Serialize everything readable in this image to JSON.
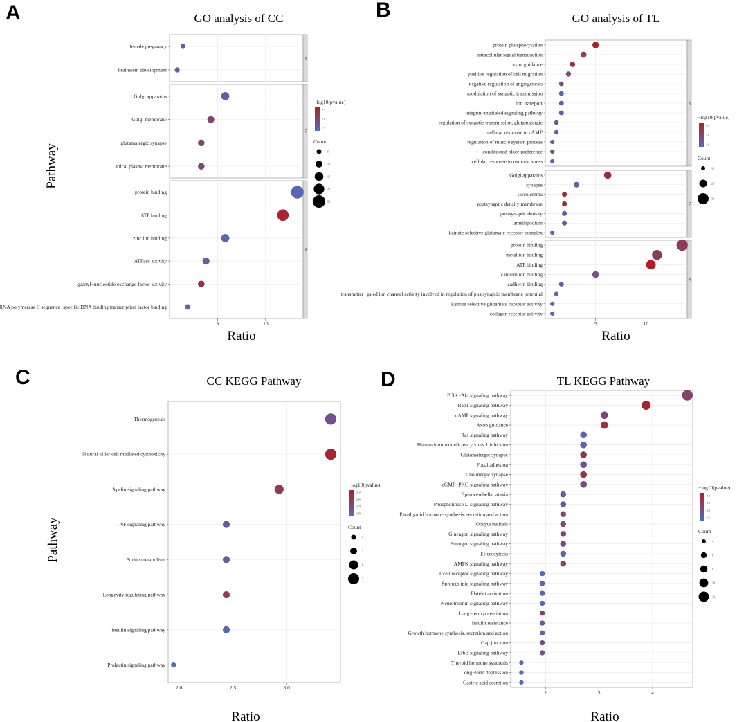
{
  "figure": {
    "panel_letters": [
      "A",
      "B",
      "C",
      "D"
    ],
    "common_labels": {
      "xlabel": "Ratio",
      "ylabel": "Pathway",
      "color_legend_title": "−log10(pvalue)",
      "size_legend_title": "Count"
    },
    "colors": {
      "low": "#4f6dc4",
      "high": "#b31d22",
      "grid": "#e6e6e6",
      "strip": "#d9d9d9"
    }
  },
  "chart_data": [
    {
      "id": "A",
      "type": "scatter",
      "title": "GO analysis of CC",
      "xlabel": "Ratio",
      "ylabel": "Pathway",
      "xlim": [
        0,
        13.9
      ],
      "xticks": [
        5,
        10
      ],
      "facets": [
        {
          "strip": "BP",
          "categories": [
            "female pregnancy",
            "brainstem development"
          ],
          "x": [
            1.4,
            0.8
          ],
          "count": [
            1,
            1
          ],
          "pvalue": [
            1.9,
            1.9
          ]
        },
        {
          "strip": "CC",
          "categories": [
            "Golgi apparatus",
            "Golgi membrane",
            "glutamatergic synapse",
            "apical plasma membrane"
          ],
          "x": [
            5.8,
            4.3,
            3.3,
            3.3
          ],
          "count": [
            7,
            5,
            4,
            4
          ],
          "pvalue": [
            1.8,
            2.3,
            2.3,
            2.2
          ]
        },
        {
          "strip": "MF",
          "categories": [
            "protein binding",
            "ATP binding",
            "zinc ion binding",
            "ATPase activity",
            "guanyl−nucleotide exchange factor activity",
            "RNA polymerase II sequence−specific DNA binding transcription factor binding"
          ],
          "x": [
            13.3,
            11.8,
            5.8,
            3.8,
            3.3,
            1.9
          ],
          "count": [
            16,
            14,
            7,
            5,
            4,
            2
          ],
          "pvalue": [
            1.7,
            2.8,
            1.7,
            1.8,
            2.6,
            1.7
          ]
        }
      ],
      "color_legend": {
        "title": "−log10(pvalue)",
        "range": [
          1.6,
          2.9
        ],
        "ticks": [
          "2.5",
          "2.0",
          "1.5"
        ]
      },
      "size_legend": {
        "title": "Count",
        "values": [
          "5",
          "10",
          "15",
          "20",
          "25"
        ]
      }
    },
    {
      "id": "B",
      "type": "scatter",
      "title": "GO analysis of TL",
      "xlabel": "Ratio",
      "ylabel": "",
      "xlim": [
        0,
        14.1
      ],
      "xticks": [
        5,
        10
      ],
      "facets": [
        {
          "strip": "BP",
          "categories": [
            "protein phosphorylation",
            "intracellular signal transduction",
            "axon guidance",
            "positive regulation of cell migration",
            "negative regulation of angiogenesis",
            "modulation of synaptic transmission",
            "ion transport",
            "integrin−mediated signaling pathway",
            "regulation of synaptic transmission, glutamatergic",
            "cellular response to cAMP",
            "regulation of muscle system process",
            "conditioned place preference",
            "cellular response to osmotic stress"
          ],
          "x": [
            5.0,
            3.8,
            2.7,
            2.3,
            1.6,
            1.6,
            1.6,
            1.6,
            1.1,
            1.1,
            0.7,
            0.7,
            0.7
          ],
          "count": [
            13,
            10,
            7,
            6,
            4,
            4,
            4,
            4,
            3,
            3,
            2,
            2,
            2
          ],
          "pvalue": [
            2.9,
            2.4,
            2.6,
            2.1,
            2.0,
            1.7,
            1.7,
            1.8,
            1.8,
            1.7,
            1.8,
            2.0,
            1.7
          ]
        },
        {
          "strip": "CC",
          "categories": [
            "Golgi apparatus",
            "synapse",
            "sarcolemma",
            "postsynaptic density membrane",
            "postsynaptic density",
            "lamellipodium",
            "kainate selective glutamate receptor complex"
          ],
          "x": [
            6.2,
            3.1,
            1.9,
            1.9,
            1.9,
            1.9,
            0.7
          ],
          "count": [
            16,
            8,
            5,
            5,
            5,
            5,
            2
          ],
          "pvalue": [
            2.8,
            1.7,
            2.7,
            2.8,
            1.7,
            1.7,
            1.6
          ]
        },
        {
          "strip": "MF",
          "categories": [
            "protein binding",
            "metal ion binding",
            "ATP binding",
            "calcium ion binding",
            "cadherin binding",
            "transmitter−gated ion channel activity involved in regulation of postsynaptic membrane potential",
            "kainate selective glutamate receptor activity",
            "collagen receptor activity"
          ],
          "x": [
            13.6,
            11.1,
            10.5,
            5.0,
            1.6,
            1.1,
            0.7,
            0.7
          ],
          "count": [
            35,
            29,
            27,
            13,
            4,
            3,
            2,
            2
          ],
          "pvalue": [
            2.4,
            2.4,
            2.9,
            2.0,
            1.7,
            1.6,
            1.6,
            1.6
          ]
        }
      ],
      "color_legend": {
        "title": "−log10(pvalue)",
        "range": [
          1.5,
          2.9
        ],
        "ticks": [
          "2.4",
          "2.0",
          "1.6"
        ]
      },
      "size_legend": {
        "title": "Count",
        "values": [
          "10",
          "20",
          "30"
        ]
      }
    },
    {
      "id": "C",
      "type": "scatter",
      "title": "CC KEGG Pathway",
      "xlabel": "Ratio",
      "ylabel": "Pathway",
      "xlim": [
        1.9,
        3.5
      ],
      "xticks": [
        2.0,
        2.5,
        3.0
      ],
      "xtick_labels": [
        "2.0",
        "2.5",
        "3.0"
      ],
      "facets": [
        {
          "strip": "",
          "categories": [
            "Thermogenesis",
            "Natural killer cell mediated cytotoxicity",
            "Apelin signaling pathway",
            "TNF signaling pathway",
            "Purine metabolism",
            "Longevity regulating pathway",
            "Insulin signaling pathway",
            "Prolactin signaling pathway"
          ],
          "x": [
            3.41,
            3.41,
            2.93,
            2.44,
            2.44,
            2.44,
            2.44,
            1.95
          ],
          "count": [
            7,
            7,
            6,
            5,
            5,
            5,
            5,
            4
          ],
          "pvalue": [
            1.9,
            2.25,
            2.1,
            1.85,
            1.8,
            2.1,
            1.75,
            1.7
          ]
        }
      ],
      "color_legend": {
        "title": "−log10(pvalue)",
        "range": [
          1.7,
          2.3
        ],
        "ticks": [
          "2.25",
          "2.00",
          "1.75",
          "1.50"
        ]
      },
      "size_legend": {
        "title": "Count",
        "values": [
          "4",
          "5",
          "6",
          "7"
        ]
      }
    },
    {
      "id": "D",
      "type": "scatter",
      "title": "TL KEGG Pathway",
      "xlabel": "Ratio",
      "ylabel": "",
      "xlim": [
        1.35,
        4.75
      ],
      "xticks": [
        2,
        3,
        4
      ],
      "xtick_labels": [
        "2",
        "3",
        "4"
      ],
      "facets": [
        {
          "strip": "",
          "categories": [
            "PI3K−Akt signaling pathway",
            "Rap1 signaling pathway",
            "cAMP signaling pathway",
            "Axon guidance",
            "Ras signaling pathway",
            "Human immunodeficiency virus 1 infection",
            "Glutamatergic synapse",
            "Focal adhesion",
            "Cholinergic synapse",
            "cGMP−PKG signaling pathway",
            "Spinocerebellar ataxia",
            "Phospholipase D signaling pathway",
            "Parathyroid hormone synthesis, secretion and action",
            "Oocyte meiosis",
            "Glucagon signaling pathway",
            "Estrogen signaling pathway",
            "Efferocytosis",
            "AMPK signaling pathway",
            "T cell receptor signaling pathway",
            "Sphingolipid signaling pathway",
            "Platelet activation",
            "Neurotrophin signaling pathway",
            "Long−term potentiation",
            "Insulin resistance",
            "Growth hormone synthesis, secretion and action",
            "Gap junction",
            "ErbB signaling pathway",
            "Thyroid hormone synthesis",
            "Long−term depression",
            "Gastric acid secretion"
          ],
          "x": [
            4.65,
            3.88,
            3.1,
            3.1,
            2.71,
            2.71,
            2.71,
            2.71,
            2.71,
            2.71,
            2.33,
            2.33,
            2.33,
            2.33,
            2.33,
            2.33,
            2.33,
            2.33,
            1.94,
            1.94,
            1.94,
            1.94,
            1.94,
            1.94,
            1.94,
            1.94,
            1.94,
            1.55,
            1.55,
            1.55
          ],
          "count": [
            12,
            10,
            8,
            8,
            7,
            7,
            7,
            7,
            7,
            7,
            6,
            6,
            6,
            6,
            6,
            6,
            6,
            6,
            5,
            5,
            5,
            5,
            5,
            5,
            5,
            5,
            5,
            4,
            4,
            4
          ],
          "pvalue": [
            2.4,
            3.1,
            2.2,
            2.8,
            1.6,
            1.6,
            2.7,
            1.9,
            2.8,
            2.2,
            1.8,
            1.8,
            2.3,
            2.1,
            2.4,
            2.2,
            1.7,
            2.3,
            1.5,
            1.6,
            1.6,
            1.6,
            2.4,
            1.8,
            1.6,
            2.1,
            2.0,
            1.4,
            1.4,
            1.5
          ]
        }
      ],
      "color_legend": {
        "title": "−log10(pvalue)",
        "range": [
          1.4,
          3.2
        ],
        "ticks": [
          "3.0",
          "2.5",
          "2.0",
          "1.5"
        ]
      },
      "size_legend": {
        "title": "Count",
        "values": [
          "4",
          "6",
          "8",
          "10",
          "12"
        ]
      }
    }
  ]
}
